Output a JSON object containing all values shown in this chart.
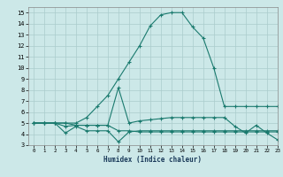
{
  "line1_x": [
    0,
    1,
    2,
    3,
    4,
    5,
    6,
    7,
    8,
    9,
    10,
    11,
    12,
    13,
    14,
    15,
    16,
    17,
    18,
    19,
    20,
    21,
    22,
    23
  ],
  "line1_y": [
    5.0,
    5.0,
    5.0,
    5.0,
    5.0,
    5.5,
    6.5,
    7.5,
    9.0,
    10.5,
    12.0,
    13.8,
    14.8,
    15.0,
    15.0,
    13.7,
    12.7,
    10.0,
    6.5,
    6.5,
    6.5,
    6.5,
    6.5,
    6.5
  ],
  "line2_x": [
    0,
    1,
    2,
    3,
    4,
    5,
    6,
    7,
    8,
    9,
    10,
    11,
    12,
    13,
    14,
    15,
    16,
    17,
    18,
    19,
    20,
    21,
    22,
    23
  ],
  "line2_y": [
    5.0,
    5.0,
    5.0,
    5.0,
    4.8,
    4.8,
    4.8,
    4.8,
    8.2,
    5.0,
    5.2,
    5.3,
    5.4,
    5.5,
    5.5,
    5.5,
    5.5,
    5.5,
    5.5,
    4.7,
    4.1,
    4.8,
    4.1,
    3.5
  ],
  "line3_x": [
    0,
    1,
    2,
    3,
    4,
    5,
    6,
    7,
    8,
    9,
    10,
    11,
    12,
    13,
    14,
    15,
    16,
    17,
    18,
    19,
    20,
    21,
    22,
    23
  ],
  "line3_y": [
    5.0,
    5.0,
    5.0,
    4.1,
    4.7,
    4.3,
    4.3,
    4.3,
    3.3,
    4.2,
    4.3,
    4.3,
    4.3,
    4.3,
    4.3,
    4.3,
    4.3,
    4.3,
    4.3,
    4.3,
    4.3,
    4.3,
    4.3,
    4.3
  ],
  "line4_x": [
    0,
    1,
    2,
    3,
    4,
    5,
    6,
    7,
    8,
    9,
    10,
    11,
    12,
    13,
    14,
    15,
    16,
    17,
    18,
    19,
    20,
    21,
    22,
    23
  ],
  "line4_y": [
    5.0,
    5.0,
    5.0,
    4.7,
    4.8,
    4.8,
    4.8,
    4.8,
    4.3,
    4.3,
    4.2,
    4.2,
    4.2,
    4.2,
    4.2,
    4.2,
    4.2,
    4.2,
    4.2,
    4.2,
    4.2,
    4.2,
    4.2,
    4.2
  ],
  "line_color": "#1a7a6e",
  "bg_color": "#cce8e8",
  "grid_color": "#aacccc",
  "xlabel": "Humidex (Indice chaleur)",
  "ylim": [
    3,
    15.5
  ],
  "xlim": [
    -0.5,
    23
  ],
  "yticks": [
    3,
    4,
    5,
    6,
    7,
    8,
    9,
    10,
    11,
    12,
    13,
    14,
    15
  ],
  "xticks": [
    0,
    1,
    2,
    3,
    4,
    5,
    6,
    7,
    8,
    9,
    10,
    11,
    12,
    13,
    14,
    15,
    16,
    17,
    18,
    19,
    20,
    21,
    22,
    23
  ]
}
